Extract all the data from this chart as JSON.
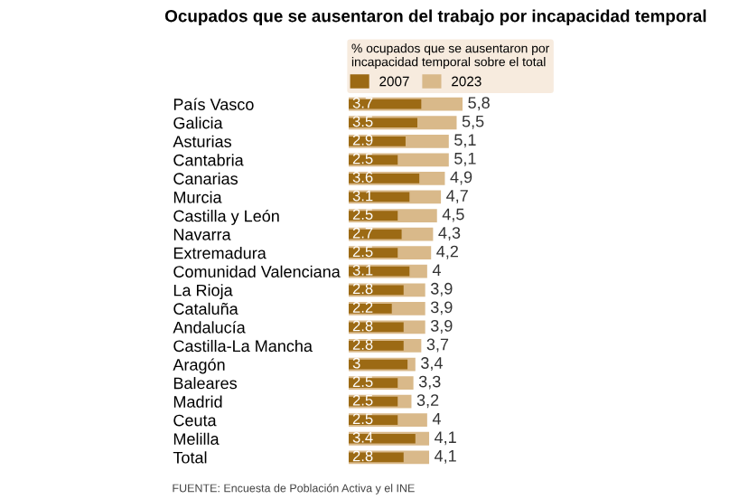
{
  "chart_data": {
    "type": "bar",
    "orientation": "horizontal",
    "title": "Ocupados que se ausentaron del trabajo por incapacidad temporal",
    "legend_title": "% ocupados que se ausentaron por\nincapacidad temporal sobre el total",
    "categories": [
      "País Vasco",
      "Galicia",
      "Asturias",
      "Cantabria",
      "Canarias",
      "Murcia",
      "Castilla y León",
      "Navarra",
      "Extremadura",
      "Comunidad Valenciana",
      "La Rioja",
      "Cataluña",
      "Andalucía",
      "Castilla-La Mancha",
      "Aragón",
      "Baleares",
      "Madrid",
      "Ceuta",
      "Melilla",
      "Total"
    ],
    "series": [
      {
        "name": "2023",
        "color": "#d9b98a",
        "values": [
          5.8,
          5.5,
          5.1,
          5.1,
          4.9,
          4.7,
          4.5,
          4.3,
          4.2,
          4,
          3.9,
          3.9,
          3.9,
          3.7,
          3.4,
          3.3,
          3.2,
          4,
          4.1,
          4.1
        ],
        "value_labels": [
          "5,8",
          "5,5",
          "5,1",
          "5,1",
          "4,9",
          "4,7",
          "4,5",
          "4,3",
          "4,2",
          "4",
          "3,9",
          "3,9",
          "3,9",
          "3,7",
          "3,4",
          "3,3",
          "3,2",
          "4",
          "4,1",
          "4,1"
        ]
      },
      {
        "name": "2007",
        "color": "#9c6a14",
        "values": [
          3.7,
          3.5,
          2.9,
          2.5,
          3.6,
          3.1,
          2.5,
          2.7,
          2.5,
          3.1,
          2.8,
          2.2,
          2.8,
          2.8,
          3,
          2.5,
          2.5,
          2.5,
          3.4,
          2.8
        ],
        "value_labels": [
          "3.7",
          "3.5",
          "2.9",
          "2.5",
          "3.6",
          "3.1",
          "2.5",
          "2.7",
          "2.5",
          "3.1",
          "2.8",
          "2.2",
          "2.8",
          "2.8",
          "3",
          "2.5",
          "2.5",
          "2.5",
          "3.4",
          "2.8"
        ]
      }
    ],
    "tick_labels": "y",
    "grid": false,
    "legend": "top",
    "annotations": [
      "FUENTE: Encuesta de Población Activa y el INE"
    ]
  }
}
